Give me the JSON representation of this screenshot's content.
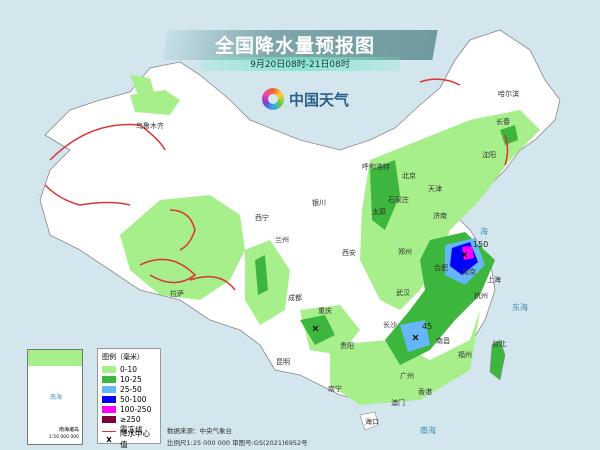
{
  "header": {
    "title": "全国降水量预报图",
    "subtitle": "9月20日08时-21日08时",
    "logo_text": "中国天气"
  },
  "legend": {
    "title": "图例（毫米）",
    "items": [
      {
        "label": "0-10",
        "color": "#a6ef8a"
      },
      {
        "label": "10-25",
        "color": "#3db63d"
      },
      {
        "label": "25-50",
        "color": "#66b6f8"
      },
      {
        "label": "50-100",
        "color": "#0000fe"
      },
      {
        "label": "100-250",
        "color": "#fe00fe"
      },
      {
        "label": "≥250",
        "color": "#7e0038"
      }
    ],
    "frost_line": "霜冻线",
    "precip_center": "降水中心值"
  },
  "footer": {
    "source": "数据来源：中央气象台",
    "scale_and_approval": "比例尺1:25 000 000    审图号:GS(2021)6952号"
  },
  "inset": {
    "label": "南海诸岛",
    "scale": "1:50 000 000",
    "sea": "南海"
  },
  "cities": [
    "哈尔滨",
    "长春",
    "沈阳",
    "呼和浩特",
    "北京",
    "天津",
    "石家庄",
    "太原",
    "济南",
    "银川",
    "西宁",
    "兰州",
    "西安",
    "郑州",
    "合肥",
    "南京",
    "上海",
    "武汉",
    "杭州",
    "成都",
    "重庆",
    "长沙",
    "南昌",
    "贵阳",
    "福州",
    "昆明",
    "南宁",
    "广州",
    "香港",
    "澳门",
    "台北",
    "海口",
    "拉萨",
    "乌鲁木齐"
  ],
  "seas": [
    "东海",
    "南海",
    "海"
  ],
  "precip_centers": [
    "150",
    "45"
  ]
}
